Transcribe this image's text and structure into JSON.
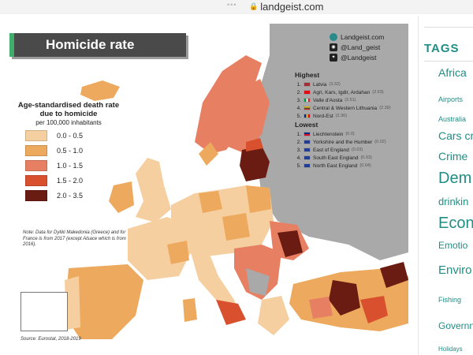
{
  "browser": {
    "url": "landgeist.com"
  },
  "map": {
    "title": "Homicide rate",
    "legend": {
      "title": "Age-standardised death rate due to homicide",
      "subtitle": "per 100,000 inhabitants",
      "bins": [
        {
          "label": "0.0 - 0.5",
          "color": "#f6cfa0"
        },
        {
          "label": "0.5 - 1.0",
          "color": "#eda95d"
        },
        {
          "label": "1.0 - 1.5",
          "color": "#e77f62"
        },
        {
          "label": "1.5 - 2.0",
          "color": "#d9502f"
        },
        {
          "label": "2.0 - 3.5",
          "color": "#6a1c12"
        }
      ]
    },
    "note": "Note: Data for Dytiki Makedonia (Greece) and for France is from 2017 (except Alsace which is from 2016).",
    "source": "Source: Eurostat, 2018-2019",
    "brand": {
      "site": "Landgeist.com",
      "instagram": "@Land_geist",
      "twitter": "@Landgeist"
    },
    "highest": {
      "title": "Highest",
      "items": [
        {
          "rank": "1.",
          "name": "Latvia",
          "value": "(3.32)"
        },
        {
          "rank": "2.",
          "name": "Agri, Kars, Igdir, Ardahan",
          "value": "(2.63)"
        },
        {
          "rank": "3.",
          "name": "Valle d'Aosta",
          "value": "(2.51)"
        },
        {
          "rank": "4.",
          "name": "Central & Western Lithuania",
          "value": "(2.39)"
        },
        {
          "rank": "5.",
          "name": "Nord-Est",
          "value": "(2.36)"
        }
      ]
    },
    "lowest": {
      "title": "Lowest",
      "items": [
        {
          "rank": "1.",
          "name": "Liechtenstein",
          "value": "(0.0)"
        },
        {
          "rank": "2.",
          "name": "Yorkshire and the Humber",
          "value": "(0.02)"
        },
        {
          "rank": "3.",
          "name": "East of England",
          "value": "(0.03)"
        },
        {
          "rank": "4.",
          "name": "South East England",
          "value": "(0.03)"
        },
        {
          "rank": "5.",
          "name": "North East England",
          "value": "(0.04)"
        }
      ]
    }
  },
  "sidebar": {
    "header": "TAGS",
    "tags": [
      {
        "label": "Africa",
        "size": 14
      },
      {
        "label": "Airports",
        "size": 9
      },
      {
        "label": "Australia",
        "size": 9
      },
      {
        "label": "Cars cr",
        "size": 14
      },
      {
        "label": "Crime",
        "size": 14
      },
      {
        "label": "Dem",
        "size": 20
      },
      {
        "label": "drinkin",
        "size": 13
      },
      {
        "label": "Econ",
        "size": 20
      },
      {
        "label": "Emotio",
        "size": 12
      },
      {
        "label": "Enviro",
        "size": 15
      },
      {
        "label": "Fishing",
        "size": 9
      },
      {
        "label": "Governn",
        "size": 12
      },
      {
        "label": "Holidays",
        "size": 8
      }
    ]
  }
}
